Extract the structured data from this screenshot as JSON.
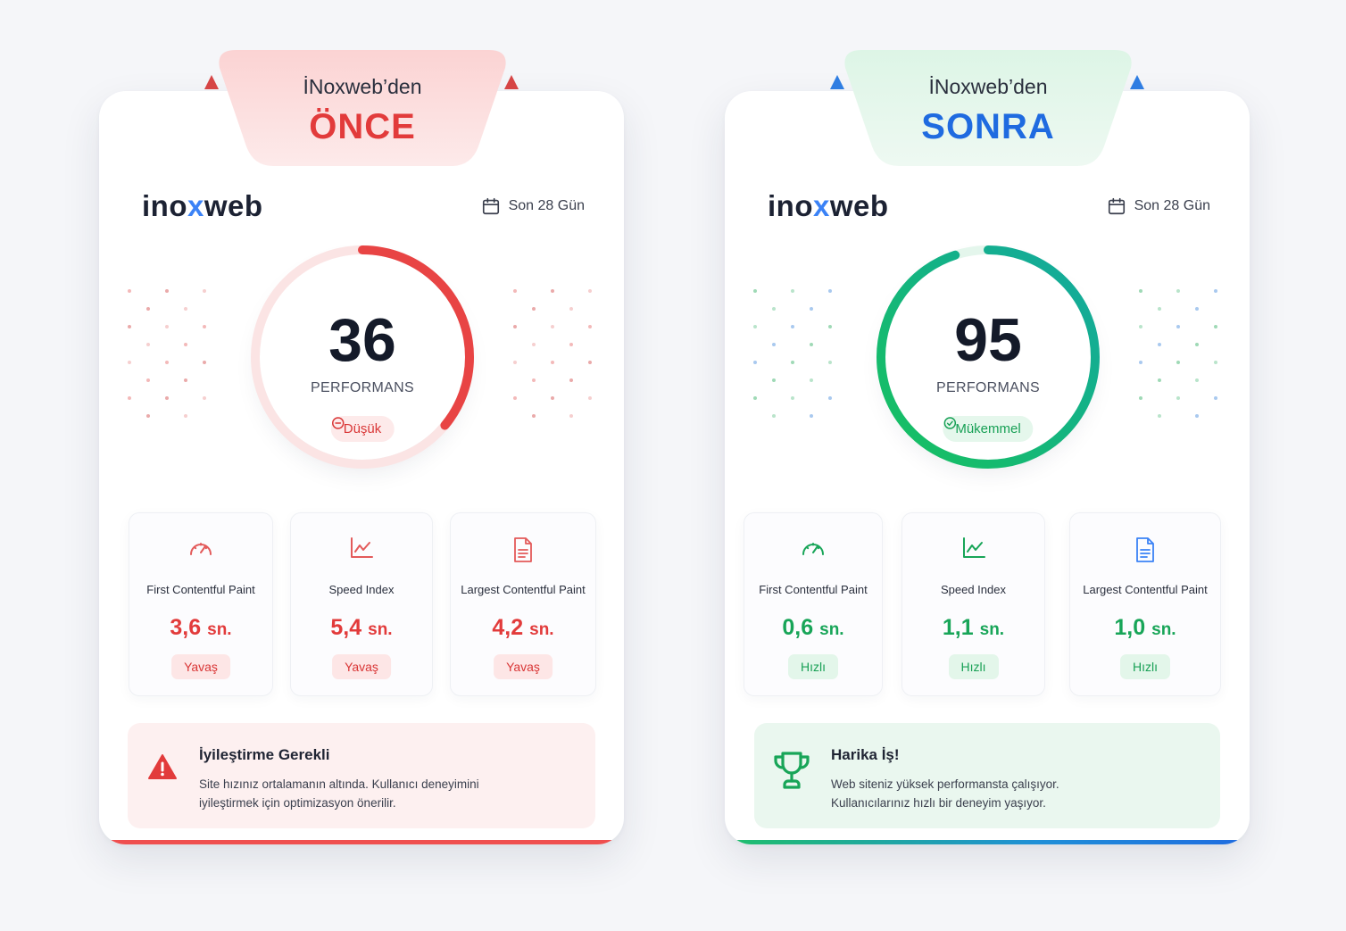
{
  "before": {
    "tab_title": "İNoxweb’den",
    "tab_heading": "ÖNCE",
    "logo_prefix": "ino",
    "logo_x": "x",
    "logo_suffix": "web",
    "period": "Son 28 Gün",
    "score": "36",
    "score_fraction": 0.36,
    "score_label": "PERFORMANS",
    "status": "Düşük",
    "metrics": [
      {
        "label": "First Contentful Paint",
        "value": "3,6",
        "unit": "sn.",
        "badge": "Yavaş",
        "icon": "speedometer-icon"
      },
      {
        "label": "Speed Index",
        "value": "5,4",
        "unit": "sn.",
        "badge": "Yavaş",
        "icon": "line-chart-icon"
      },
      {
        "label": "Largest Contentful Paint",
        "value": "4,2",
        "unit": "sn.",
        "badge": "Yavaş",
        "icon": "document-icon"
      }
    ],
    "note_title": "İyileştirme Gerekli",
    "note_line1": "Site hızınız ortalamanın altında. Kullanıcı deneyimini",
    "note_line2": "iyileştirmek için optimizasyon önerilir.",
    "note_icon": "warning-icon",
    "accent": "#e23b3b"
  },
  "after": {
    "tab_title": "İNoxweb’den",
    "tab_heading": "SONRA",
    "logo_prefix": "ino",
    "logo_x": "x",
    "logo_suffix": "web",
    "period": "Son 28 Gün",
    "score": "95",
    "score_fraction": 0.95,
    "score_label": "PERFORMANS",
    "status": "Mükemmel",
    "metrics": [
      {
        "label": "First Contentful Paint",
        "value": "0,6",
        "unit": "sn.",
        "badge": "Hızlı",
        "icon": "speedometer-icon"
      },
      {
        "label": "Speed Index",
        "value": "1,1",
        "unit": "sn.",
        "badge": "Hızlı",
        "icon": "line-chart-icon"
      },
      {
        "label": "Largest Contentful Paint",
        "value": "1,0",
        "unit": "sn.",
        "badge": "Hızlı",
        "icon": "document-icon"
      }
    ],
    "note_title": "Harika İş!",
    "note_line1": "Web siteniz yüksek performansta çalışıyor.",
    "note_line2": "Kullanıcılarınız hızlı bir deneyim yaşıyor.",
    "note_icon": "trophy-icon",
    "accent": "#18a558"
  }
}
